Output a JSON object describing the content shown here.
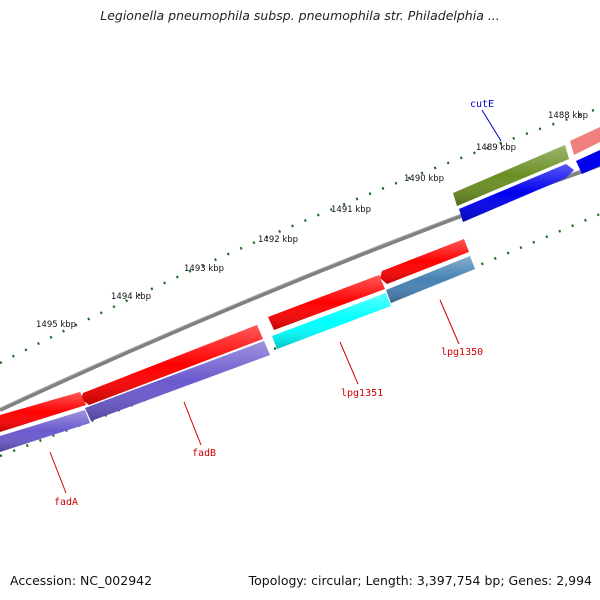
{
  "title": "Legionella pneumophila subsp. pneumophila str. Philadelphia ...",
  "accession": "Accession: NC_002942",
  "summary": "Topology: circular; Length: 3,397,754 bp; Genes: 2,994",
  "scale_labels": [
    "1488 kbp",
    "1489 kbp",
    "1490 kbp",
    "1491 kbp",
    "1492 kbp",
    "1493 kbp",
    "1494 kbp",
    "1495 kbp"
  ],
  "gene_labels": [
    {
      "name": "cutE",
      "color": "#0000cc"
    },
    {
      "name": "lpg1350",
      "color": "#cc0000"
    },
    {
      "name": "lpg1351",
      "color": "#cc0000"
    },
    {
      "name": "fadB",
      "color": "#cc0000"
    },
    {
      "name": "fadA",
      "color": "#cc0000"
    }
  ],
  "colors": {
    "cds_red": "#ff0000",
    "cds_blue": "#0000ee",
    "cds_cyan": "#00ffff",
    "cds_purple": "#6a5acd",
    "cds_steel": "#4682b4",
    "cds_olive": "#6b8e23",
    "cds_pink": "#f08080",
    "backbone": "#808080",
    "tick": "#1e6b1e"
  }
}
